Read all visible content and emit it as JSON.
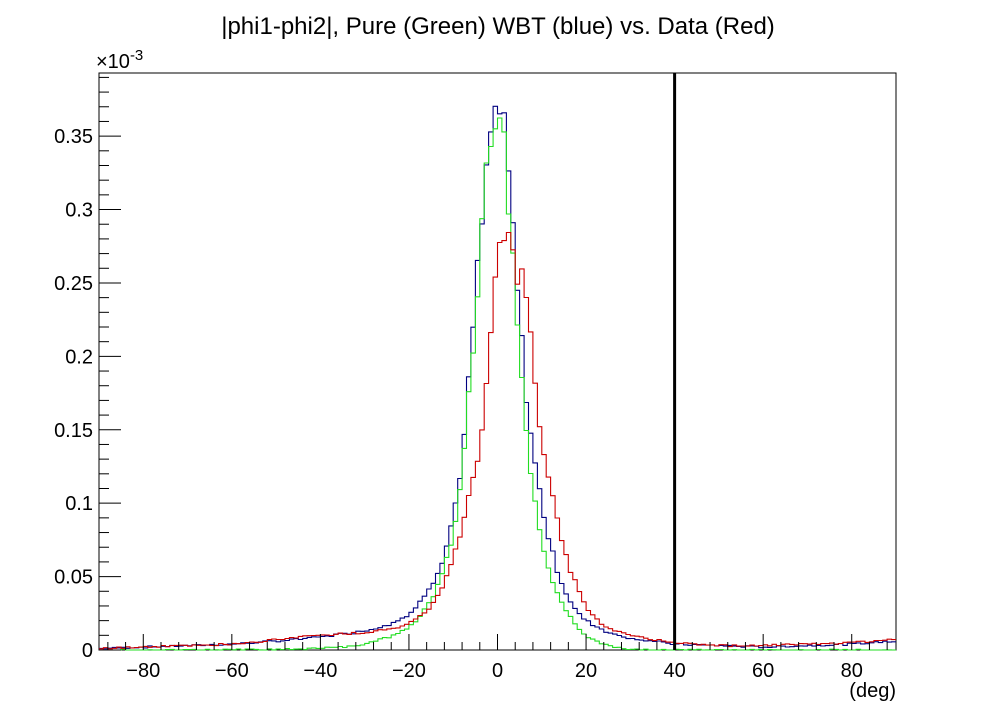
{
  "chart_data": {
    "type": "line",
    "title": "|phi1-phi2|, Pure (Green) WBT (blue) vs. Data (Red)",
    "xlabel": "(deg)",
    "ylabel": "",
    "y_multiplier_label": "×10",
    "y_multiplier_exponent": "-3",
    "xlim": [
      -90,
      90
    ],
    "ylim": [
      0,
      0.393
    ],
    "x_ticks": [
      -80,
      -60,
      -40,
      -20,
      0,
      20,
      40,
      60,
      80
    ],
    "x_tick_labels": [
      "−80",
      "−60",
      "−40",
      "−20",
      "0",
      "20",
      "40",
      "60",
      "80"
    ],
    "y_ticks": [
      0,
      0.05,
      0.1,
      0.15,
      0.2,
      0.25,
      0.3,
      0.35
    ],
    "y_tick_labels": [
      "0",
      "0.05",
      "0.1",
      "0.15",
      "0.2",
      "0.25",
      "0.3",
      "0.35"
    ],
    "grid": false,
    "cut_line_x": 40,
    "bin_width": 1,
    "x_bin_start": -90,
    "series": [
      {
        "color": "#000080",
        "points": [
          [
            -90,
            0.001
          ],
          [
            -80,
            0.002
          ],
          [
            -70,
            0.003
          ],
          [
            -60,
            0.004
          ],
          [
            -50,
            0.006
          ],
          [
            -40,
            0.009
          ],
          [
            -30,
            0.013
          ],
          [
            -25,
            0.017
          ],
          [
            -20,
            0.024
          ],
          [
            -18,
            0.03
          ],
          [
            -16,
            0.04
          ],
          [
            -14,
            0.05
          ],
          [
            -12,
            0.065
          ],
          [
            -10,
            0.09
          ],
          [
            -8,
            0.13
          ],
          [
            -7,
            0.16
          ],
          [
            -6,
            0.2
          ],
          [
            -5,
            0.24
          ],
          [
            -4,
            0.275
          ],
          [
            -3,
            0.305
          ],
          [
            -2,
            0.34
          ],
          [
            -1,
            0.362
          ],
          [
            0,
            0.37
          ],
          [
            1,
            0.365
          ],
          [
            2,
            0.34
          ],
          [
            3,
            0.305
          ],
          [
            4,
            0.265
          ],
          [
            5,
            0.225
          ],
          [
            6,
            0.19
          ],
          [
            7,
            0.16
          ],
          [
            8,
            0.135
          ],
          [
            10,
            0.1
          ],
          [
            12,
            0.07
          ],
          [
            14,
            0.05
          ],
          [
            16,
            0.035
          ],
          [
            18,
            0.026
          ],
          [
            20,
            0.02
          ],
          [
            25,
            0.012
          ],
          [
            30,
            0.008
          ],
          [
            35,
            0.006
          ],
          [
            40,
            0.004
          ],
          [
            50,
            0.003
          ],
          [
            60,
            0.002
          ],
          [
            70,
            0.003
          ],
          [
            80,
            0.004
          ],
          [
            89,
            0.006
          ]
        ]
      },
      {
        "color": "#22dd22",
        "points": [
          [
            -90,
            0.0
          ],
          [
            -60,
            0.0
          ],
          [
            -45,
            0.0005
          ],
          [
            -35,
            0.002
          ],
          [
            -30,
            0.004
          ],
          [
            -25,
            0.008
          ],
          [
            -22,
            0.012
          ],
          [
            -20,
            0.016
          ],
          [
            -18,
            0.022
          ],
          [
            -16,
            0.03
          ],
          [
            -14,
            0.04
          ],
          [
            -12,
            0.058
          ],
          [
            -10,
            0.08
          ],
          [
            -8,
            0.12
          ],
          [
            -7,
            0.15
          ],
          [
            -6,
            0.19
          ],
          [
            -5,
            0.23
          ],
          [
            -4,
            0.27
          ],
          [
            -3,
            0.305
          ],
          [
            -2,
            0.335
          ],
          [
            -1,
            0.36
          ],
          [
            0,
            0.374
          ],
          [
            1,
            0.355
          ],
          [
            2,
            0.325
          ],
          [
            3,
            0.285
          ],
          [
            4,
            0.245
          ],
          [
            5,
            0.205
          ],
          [
            6,
            0.17
          ],
          [
            7,
            0.135
          ],
          [
            8,
            0.105
          ],
          [
            10,
            0.075
          ],
          [
            12,
            0.05
          ],
          [
            14,
            0.035
          ],
          [
            16,
            0.024
          ],
          [
            18,
            0.016
          ],
          [
            20,
            0.01
          ],
          [
            22,
            0.006
          ],
          [
            25,
            0.003
          ],
          [
            28,
            0.001
          ],
          [
            32,
            0.0
          ],
          [
            89,
            0.0
          ]
        ]
      },
      {
        "color": "#cc0000",
        "points": [
          [
            -90,
            0.001
          ],
          [
            -80,
            0.002
          ],
          [
            -70,
            0.003
          ],
          [
            -60,
            0.004
          ],
          [
            -50,
            0.007
          ],
          [
            -40,
            0.01
          ],
          [
            -30,
            0.012
          ],
          [
            -25,
            0.014
          ],
          [
            -20,
            0.018
          ],
          [
            -18,
            0.022
          ],
          [
            -16,
            0.027
          ],
          [
            -14,
            0.035
          ],
          [
            -12,
            0.046
          ],
          [
            -10,
            0.062
          ],
          [
            -8,
            0.082
          ],
          [
            -6,
            0.108
          ],
          [
            -4,
            0.14
          ],
          [
            -3,
            0.17
          ],
          [
            -2,
            0.205
          ],
          [
            -1,
            0.24
          ],
          [
            0,
            0.265
          ],
          [
            1,
            0.295
          ],
          [
            2,
            0.285
          ],
          [
            3,
            0.275
          ],
          [
            4,
            0.26
          ],
          [
            5,
            0.255
          ],
          [
            6,
            0.25
          ],
          [
            7,
            0.228
          ],
          [
            8,
            0.2
          ],
          [
            9,
            0.17
          ],
          [
            10,
            0.145
          ],
          [
            12,
            0.11
          ],
          [
            14,
            0.08
          ],
          [
            16,
            0.058
          ],
          [
            18,
            0.042
          ],
          [
            20,
            0.03
          ],
          [
            22,
            0.022
          ],
          [
            25,
            0.015
          ],
          [
            30,
            0.01
          ],
          [
            35,
            0.007
          ],
          [
            40,
            0.005
          ],
          [
            50,
            0.003
          ],
          [
            60,
            0.003
          ],
          [
            70,
            0.004
          ],
          [
            80,
            0.005
          ],
          [
            89,
            0.007
          ]
        ]
      }
    ]
  }
}
